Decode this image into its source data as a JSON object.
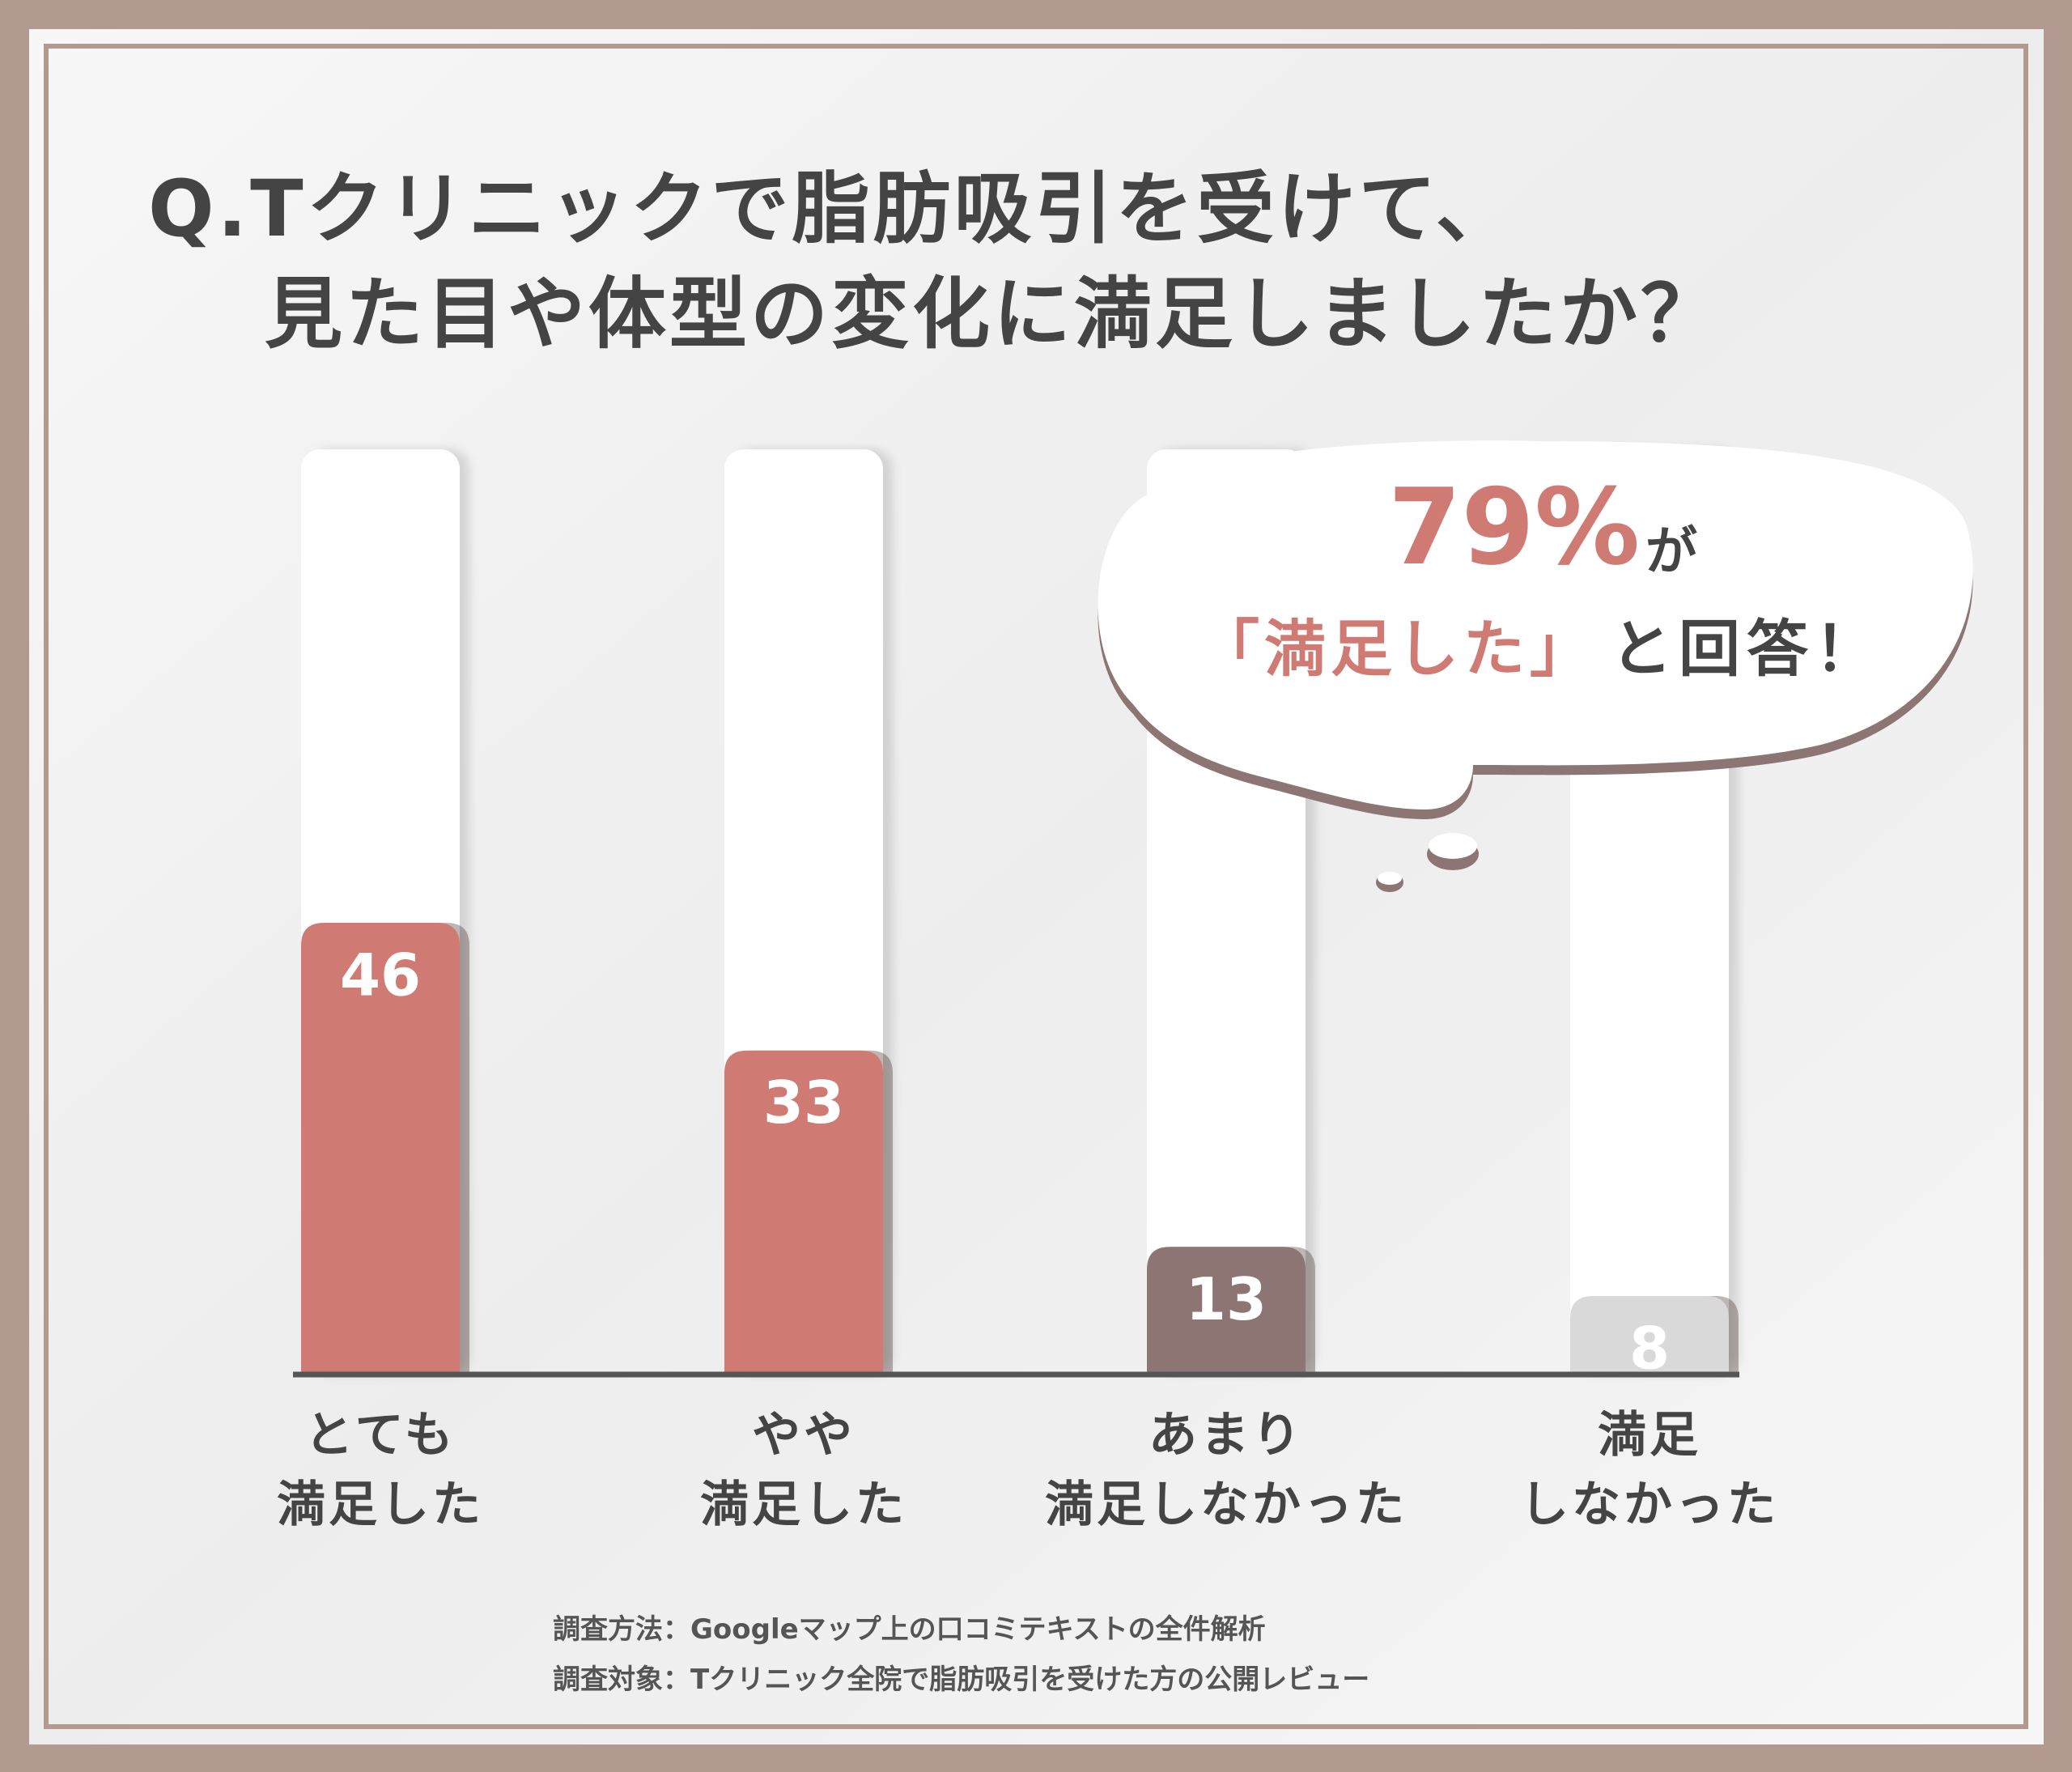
{
  "chart_data": {
    "type": "bar",
    "title": [
      "Q.Tクリニックで脂肪吸引を受けて、",
      "見た目や体型の変化に満足しましたか？"
    ],
    "categories": [
      "とても\n満足した",
      "やや\n満足した",
      "あまり\n満足しなかった",
      "満足\nしなかった"
    ],
    "values": [
      46,
      33,
      13,
      8
    ],
    "colors": [
      "#d07a74",
      "#d07a74",
      "#8c7572",
      "#d9d9d9"
    ],
    "annotation": {
      "highlight": "79%",
      "particle": "が",
      "quote": "「満足した」",
      "rest": "と回答！"
    },
    "notes": [
      "調査方法：Googleマップ上の口コミテキストの全件解析",
      "調査対象：Tクリニック全院で脂肪吸引を受けた方の公開レビュー"
    ]
  }
}
